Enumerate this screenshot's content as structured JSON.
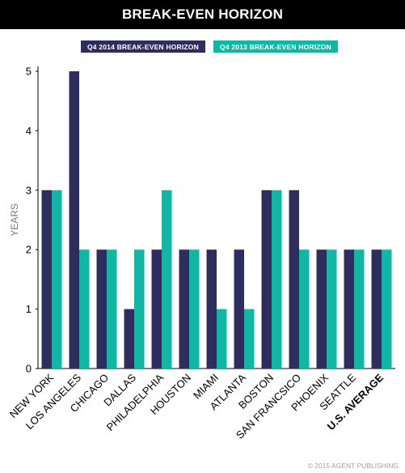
{
  "title": "BREAK-EVEN HORIZON",
  "copyright": "© 2015 AGENT PUBLISHING",
  "colors": {
    "series_2014": "#2f2d5e",
    "series_2013": "#13b6a4"
  },
  "chart_data": {
    "type": "bar",
    "title": "BREAK-EVEN HORIZON",
    "ylabel": "YEARS",
    "xlabel": "",
    "ylim": [
      0,
      5
    ],
    "yticks": [
      0,
      1,
      2,
      3,
      4,
      5
    ],
    "grid": false,
    "legend_position": "top",
    "categories": [
      "NEW YORK",
      "LOS ANGELES",
      "CHICAGO",
      "DALLAS",
      "PHILADELPHIA",
      "HOUSTON",
      "MIAMI",
      "ATLANTA",
      "BOSTON",
      "SAN FRANCSICO",
      "PHOENIX",
      "SEATTLE",
      "U.S. AVERAGE"
    ],
    "series": [
      {
        "name": "Q4 2014 BREAK-EVEN HORIZON",
        "color": "#2f2d5e",
        "values": [
          3,
          5,
          2,
          1,
          2,
          2,
          2,
          2,
          3,
          3,
          2,
          2,
          2
        ]
      },
      {
        "name": "Q4 2013 BREAK-EVEN HORIZON",
        "color": "#13b6a4",
        "values": [
          3,
          2,
          2,
          2,
          3,
          2,
          1,
          1,
          3,
          2,
          2,
          2,
          2
        ]
      }
    ]
  }
}
